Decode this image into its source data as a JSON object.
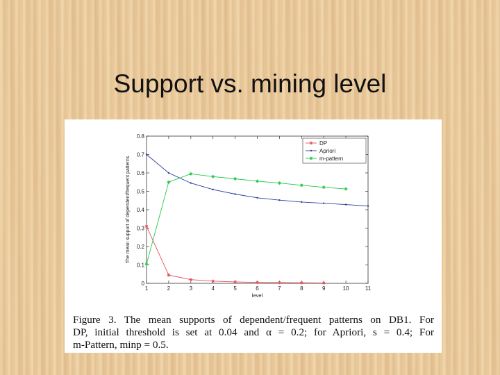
{
  "slide": {
    "title": "Support vs. mining level"
  },
  "figure": {
    "caption_lines": [
      "Figure 3. The mean supports of dependent/frequent patterns on DB1. For",
      "DP, initial threshold is set at 0.04 and α = 0.2; for Apriori, s = 0.4; For",
      "m-Pattern, minp = 0.5."
    ]
  },
  "chart_data": {
    "type": "line",
    "xlabel": "level",
    "ylabel": "The mean support of dependent/frequent patterns",
    "xlim": [
      1,
      11
    ],
    "ylim": [
      0,
      0.8
    ],
    "xticks": [
      1,
      2,
      3,
      4,
      5,
      6,
      7,
      8,
      9,
      10,
      11
    ],
    "yticks": [
      0,
      0.1,
      0.2,
      0.3,
      0.4,
      0.5,
      0.6,
      0.7,
      0.8
    ],
    "legend_position": "top-right",
    "grid": false,
    "series": [
      {
        "name": "DP",
        "color": "#e8505b",
        "marker": "asterisk",
        "x": [
          1,
          2,
          3,
          4,
          5,
          6,
          7,
          8,
          9
        ],
        "y": [
          0.31,
          0.045,
          0.02,
          0.012,
          0.008,
          0.005,
          0.004,
          0.003,
          0.002
        ]
      },
      {
        "name": "Apriori",
        "color": "#2e3b9e",
        "marker": "dot",
        "x": [
          1,
          2,
          3,
          4,
          5,
          6,
          7,
          8,
          9,
          10,
          11
        ],
        "y": [
          0.7,
          0.6,
          0.545,
          0.51,
          0.485,
          0.465,
          0.452,
          0.442,
          0.435,
          0.428,
          0.42
        ]
      },
      {
        "name": "m-pattern",
        "color": "#22c94a",
        "marker": "asterisk",
        "x": [
          1,
          2,
          3,
          4,
          5,
          6,
          7,
          8,
          9,
          10
        ],
        "y": [
          0.105,
          0.55,
          0.595,
          0.58,
          0.568,
          0.555,
          0.545,
          0.533,
          0.522,
          0.513
        ]
      }
    ]
  }
}
